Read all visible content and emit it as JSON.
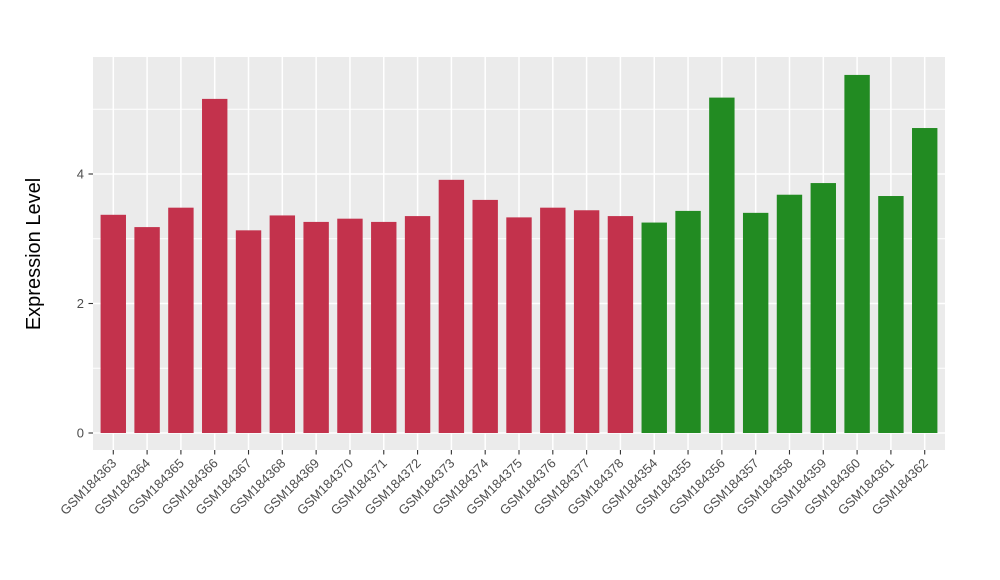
{
  "chart_data": {
    "type": "bar",
    "title": "",
    "xlabel": "",
    "ylabel": "Expression Level",
    "ylim": [
      0,
      5.81
    ],
    "yticks": [
      0,
      2,
      4
    ],
    "yticks_minor": [
      1,
      3,
      5
    ],
    "grid": "white major and minor gridlines on gray panel",
    "legend_position": "none",
    "panel_background": "#EBEBEB",
    "gridline_color": "#FFFFFF",
    "axis_text_color": "#4D4D4D",
    "tick_mark_color": "#333333",
    "group_colors": {
      "group_red": "#C3324C",
      "group_green": "#228B22"
    },
    "categories": [
      "GSM184363",
      "GSM184364",
      "GSM184365",
      "GSM184366",
      "GSM184367",
      "GSM184368",
      "GSM184369",
      "GSM184370",
      "GSM184371",
      "GSM184372",
      "GSM184373",
      "GSM184374",
      "GSM184375",
      "GSM184376",
      "GSM184377",
      "GSM184378",
      "GSM184354",
      "GSM184355",
      "GSM184356",
      "GSM184357",
      "GSM184358",
      "GSM184359",
      "GSM184360",
      "GSM184361",
      "GSM184362"
    ],
    "values": [
      3.37,
      3.18,
      3.48,
      5.16,
      3.13,
      3.36,
      3.26,
      3.31,
      3.26,
      3.35,
      3.91,
      3.6,
      3.33,
      3.48,
      3.44,
      3.35,
      3.25,
      3.43,
      5.18,
      3.4,
      3.68,
      3.86,
      5.53,
      3.66,
      4.71
    ],
    "groups": [
      "group_red",
      "group_red",
      "group_red",
      "group_red",
      "group_red",
      "group_red",
      "group_red",
      "group_red",
      "group_red",
      "group_red",
      "group_red",
      "group_red",
      "group_red",
      "group_red",
      "group_red",
      "group_red",
      "group_green",
      "group_green",
      "group_green",
      "group_green",
      "group_green",
      "group_green",
      "group_green",
      "group_green",
      "group_green"
    ]
  }
}
